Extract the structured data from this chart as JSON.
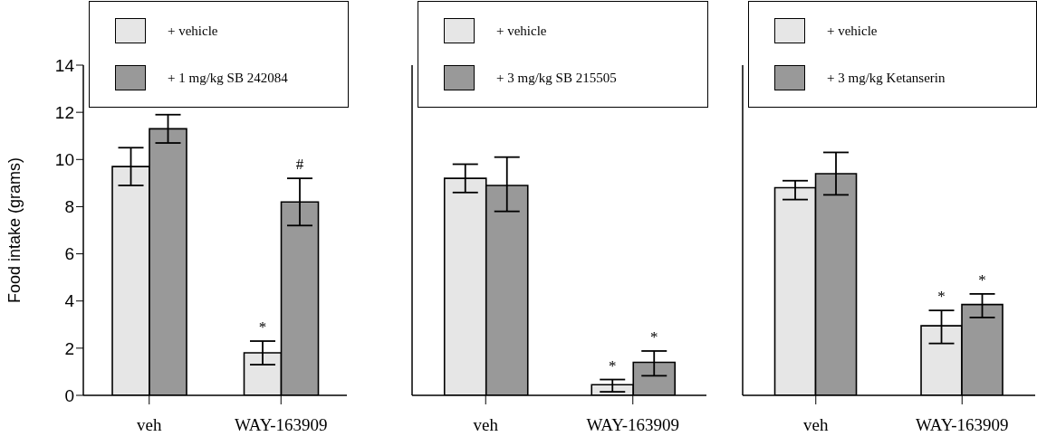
{
  "chart_data": [
    {
      "type": "bar",
      "ylabel": "Food intake (grams)",
      "categories": [
        "veh",
        "WAY-163909"
      ],
      "ylim": [
        0,
        14
      ],
      "yticks": [
        0,
        2,
        4,
        6,
        8,
        10,
        12,
        14
      ],
      "grid": false,
      "legend": "top",
      "series": [
        {
          "name": "+ vehicle",
          "color": "#e6e6e6",
          "values": [
            9.7,
            1.8
          ],
          "errors": [
            [
              8.9,
              10.5
            ],
            [
              1.3,
              2.3
            ]
          ],
          "value_labels": [
            null,
            "*"
          ]
        },
        {
          "name": "+ 1 mg/kg SB 242084",
          "color": "#999999",
          "values": [
            11.3,
            8.2
          ],
          "errors": [
            [
              10.7,
              11.9
            ],
            [
              7.2,
              9.2
            ]
          ],
          "value_labels": [
            null,
            "#"
          ]
        }
      ]
    },
    {
      "type": "bar",
      "categories": [
        "veh",
        "WAY-163909"
      ],
      "ylim": [
        0,
        14
      ],
      "yticks": [
        0,
        2,
        4,
        6,
        8,
        10,
        12,
        14
      ],
      "tick_labels": "x",
      "grid": false,
      "legend": "top",
      "series": [
        {
          "name": "+ vehicle",
          "color": "#e6e6e6",
          "values": [
            9.2,
            0.45
          ],
          "errors": [
            [
              8.6,
              9.8
            ],
            [
              0.15,
              0.67
            ]
          ],
          "value_labels": [
            null,
            "*"
          ]
        },
        {
          "name": "+ 3 mg/kg SB 215505",
          "color": "#999999",
          "values": [
            8.9,
            1.4
          ],
          "errors": [
            [
              7.8,
              10.1
            ],
            [
              0.83,
              1.88
            ]
          ],
          "value_labels": [
            null,
            "*"
          ]
        }
      ]
    },
    {
      "type": "bar",
      "categories": [
        "veh",
        "WAY-163909"
      ],
      "ylim": [
        0,
        14
      ],
      "yticks": [
        0,
        2,
        4,
        6,
        8,
        10,
        12,
        14
      ],
      "tick_labels": "x",
      "grid": false,
      "legend": "top",
      "series": [
        {
          "name": "+ vehicle",
          "color": "#e6e6e6",
          "values": [
            8.8,
            2.95
          ],
          "errors": [
            [
              8.3,
              9.1
            ],
            [
              2.2,
              3.6
            ]
          ],
          "value_labels": [
            null,
            "*"
          ]
        },
        {
          "name": "+ 3 mg/kg Ketanserin",
          "color": "#999999",
          "values": [
            9.4,
            3.85
          ],
          "errors": [
            [
              8.5,
              10.3
            ],
            [
              3.3,
              4.3
            ]
          ],
          "value_labels": [
            null,
            "*"
          ]
        }
      ]
    }
  ]
}
